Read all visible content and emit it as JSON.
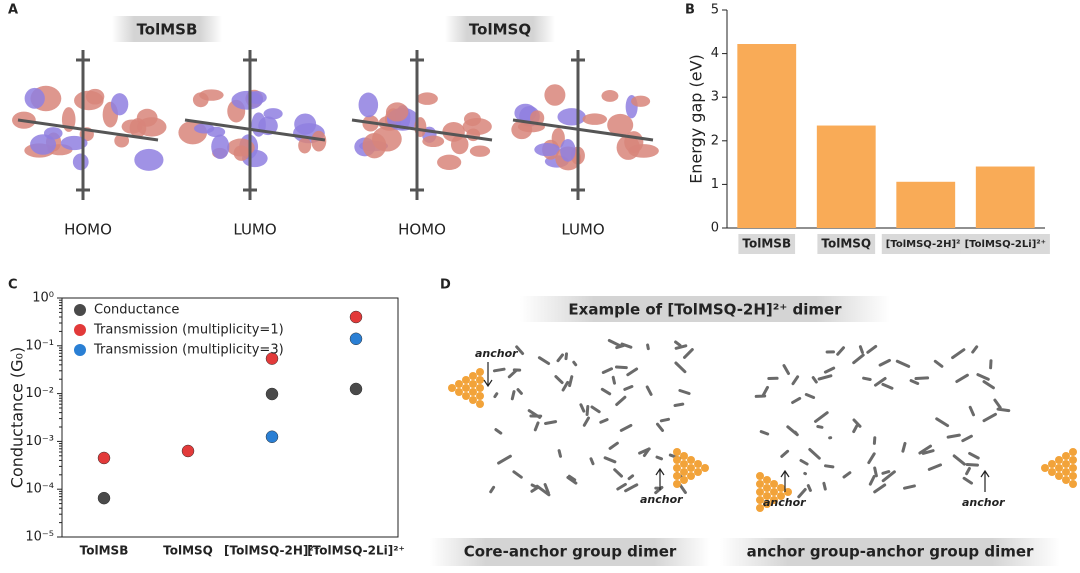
{
  "panel_a": {
    "panel_label": "A",
    "molecules": [
      "TolMSB",
      "TolMSQ"
    ],
    "orbitals": [
      "HOMO",
      "LUMO",
      "HOMO",
      "LUMO"
    ]
  },
  "chart_data": [
    {
      "type": "bar",
      "panel_label": "B",
      "categories": [
        "TolMSB",
        "TolMSQ",
        "[TolMSQ-2H]²⁺",
        "[TolMSQ-2Li]²⁺"
      ],
      "values": [
        4.22,
        2.35,
        1.06,
        1.41
      ],
      "color": "#f9ab57",
      "ylim": [
        0,
        5
      ],
      "yticks": [
        0,
        1,
        2,
        3,
        4,
        5
      ],
      "ylabel": "Energy gap (eV)",
      "grid": false
    },
    {
      "type": "scatter",
      "panel_label": "C",
      "categories": [
        "TolMSB",
        "TolMSQ",
        "[TolMSQ-2H]²⁺",
        "[TolMSQ-2Li]²⁺"
      ],
      "series": [
        {
          "name": "Conductance",
          "color": "#4a4a4a",
          "values": [
            6.5e-05,
            null,
            0.0098,
            0.0125
          ]
        },
        {
          "name": "Transmission (multiplicity=1)",
          "color": "#e23a3a",
          "values": [
            0.00045,
            0.00063,
            0.054,
            0.4
          ]
        },
        {
          "name": "Transmission (multiplicity=3)",
          "color": "#2a7fd4",
          "values": [
            null,
            null,
            0.00125,
            0.14
          ]
        }
      ],
      "ylim": [
        1e-05,
        1
      ],
      "yscale": "log",
      "yticks": [
        {
          "value": 1,
          "label": "10⁰"
        },
        {
          "value": 0.1,
          "label": "10⁻¹"
        },
        {
          "value": 0.01,
          "label": "10⁻²"
        },
        {
          "value": 0.001,
          "label": "10⁻³"
        },
        {
          "value": 0.0001,
          "label": "10⁻⁴"
        },
        {
          "value": 1e-05,
          "label": "10⁻⁵"
        }
      ],
      "ylabel": "Conductance (G₀)",
      "legend": "upper left",
      "grid": false
    }
  ],
  "panel_d": {
    "panel_label": "D",
    "title": "Example of [TolMSQ-2H]²⁺ dimer",
    "anchors": [
      "anchor",
      "anchor",
      "anchor",
      "anchor"
    ],
    "captions": [
      "Core-anchor group dimer",
      "anchor group-anchor group dimer"
    ]
  }
}
